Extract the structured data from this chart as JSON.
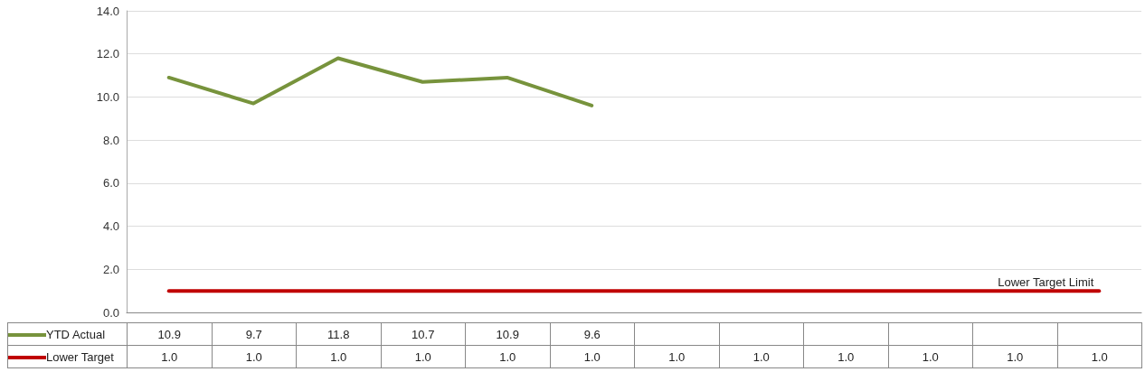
{
  "chart_data": {
    "type": "line",
    "categories": [
      null,
      null,
      null,
      null,
      null,
      null,
      null,
      null,
      null,
      null,
      null,
      null
    ],
    "series": [
      {
        "name": "YTD Actual",
        "color": "#77933c",
        "values": [
          10.9,
          9.7,
          11.8,
          10.7,
          10.9,
          9.6,
          null,
          null,
          null,
          null,
          null,
          null
        ],
        "value_labels": [
          "10.9",
          "9.7",
          "11.8",
          "10.7",
          "10.9",
          "9.6",
          null,
          null,
          null,
          null,
          null,
          null
        ]
      },
      {
        "name": "Lower Target",
        "color": "#c00000",
        "values": [
          1.0,
          1.0,
          1.0,
          1.0,
          1.0,
          1.0,
          1.0,
          1.0,
          1.0,
          1.0,
          1.0,
          1.0
        ],
        "value_labels": [
          "1.0",
          "1.0",
          "1.0",
          "1.0",
          "1.0",
          "1.0",
          "1.0",
          "1.0",
          "1.0",
          "1.0",
          "1.0",
          "1.0"
        ]
      }
    ],
    "annotations": [
      "Lower Target Limit"
    ],
    "ylim": [
      0,
      14
    ],
    "yticks": [
      {
        "value": 0,
        "label": "0.0"
      },
      {
        "value": 2,
        "label": "2.0"
      },
      {
        "value": 4,
        "label": "4.0"
      },
      {
        "value": 6,
        "label": "6.0"
      },
      {
        "value": 8,
        "label": "8.0"
      },
      {
        "value": 10,
        "label": "10.0"
      },
      {
        "value": 12,
        "label": "12.0"
      },
      {
        "value": 14,
        "label": "14.0"
      }
    ],
    "grid": "y",
    "legend": "bottom left",
    "marker": "none",
    "line_style": "solid"
  }
}
